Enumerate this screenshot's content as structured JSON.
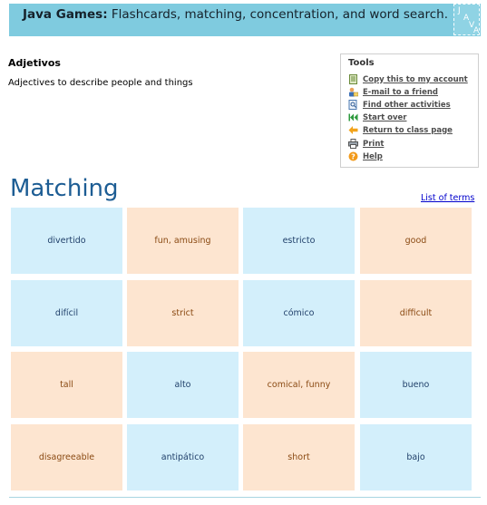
{
  "banner": {
    "title_bold": "Java Games:",
    "title_rest": " Flashcards, matching, concentration, and word search.",
    "logo_text": "JAVA"
  },
  "activity": {
    "title": "Adjetivos",
    "description": "Adjectives to describe people and things"
  },
  "tools": {
    "title": "Tools",
    "items": [
      {
        "label": "Copy this to my account",
        "icon": "copy-icon"
      },
      {
        "label": "E-mail to a friend",
        "icon": "user-mail-icon"
      },
      {
        "label": "Find other activities",
        "icon": "search-doc-icon"
      },
      {
        "label": "Start over",
        "icon": "rewind-icon"
      },
      {
        "label": "Return to class page",
        "icon": "back-arrow-icon"
      },
      {
        "label": "Print",
        "icon": "printer-icon"
      },
      {
        "label": "Help",
        "icon": "help-icon"
      }
    ]
  },
  "game": {
    "heading": "Matching",
    "list_link": "List of terms",
    "cards": [
      {
        "text": "divertido",
        "color": "blue"
      },
      {
        "text": "fun, amusing",
        "color": "peach"
      },
      {
        "text": "estricto",
        "color": "blue"
      },
      {
        "text": "good",
        "color": "peach"
      },
      {
        "text": "difícil",
        "color": "blue"
      },
      {
        "text": "strict",
        "color": "peach"
      },
      {
        "text": "cómico",
        "color": "blue"
      },
      {
        "text": "difficult",
        "color": "peach"
      },
      {
        "text": "tall",
        "color": "peach"
      },
      {
        "text": "alto",
        "color": "blue"
      },
      {
        "text": "comical, funny",
        "color": "peach"
      },
      {
        "text": "bueno",
        "color": "blue"
      },
      {
        "text": "disagreeable",
        "color": "peach"
      },
      {
        "text": "antipático",
        "color": "blue"
      },
      {
        "text": "short",
        "color": "peach"
      },
      {
        "text": "bajo",
        "color": "blue"
      }
    ]
  },
  "colors": {
    "banner_bg": "#7fcbdf",
    "heading": "#1d5d94",
    "card_blue": "#d3effb",
    "card_peach": "#fde5d0"
  }
}
